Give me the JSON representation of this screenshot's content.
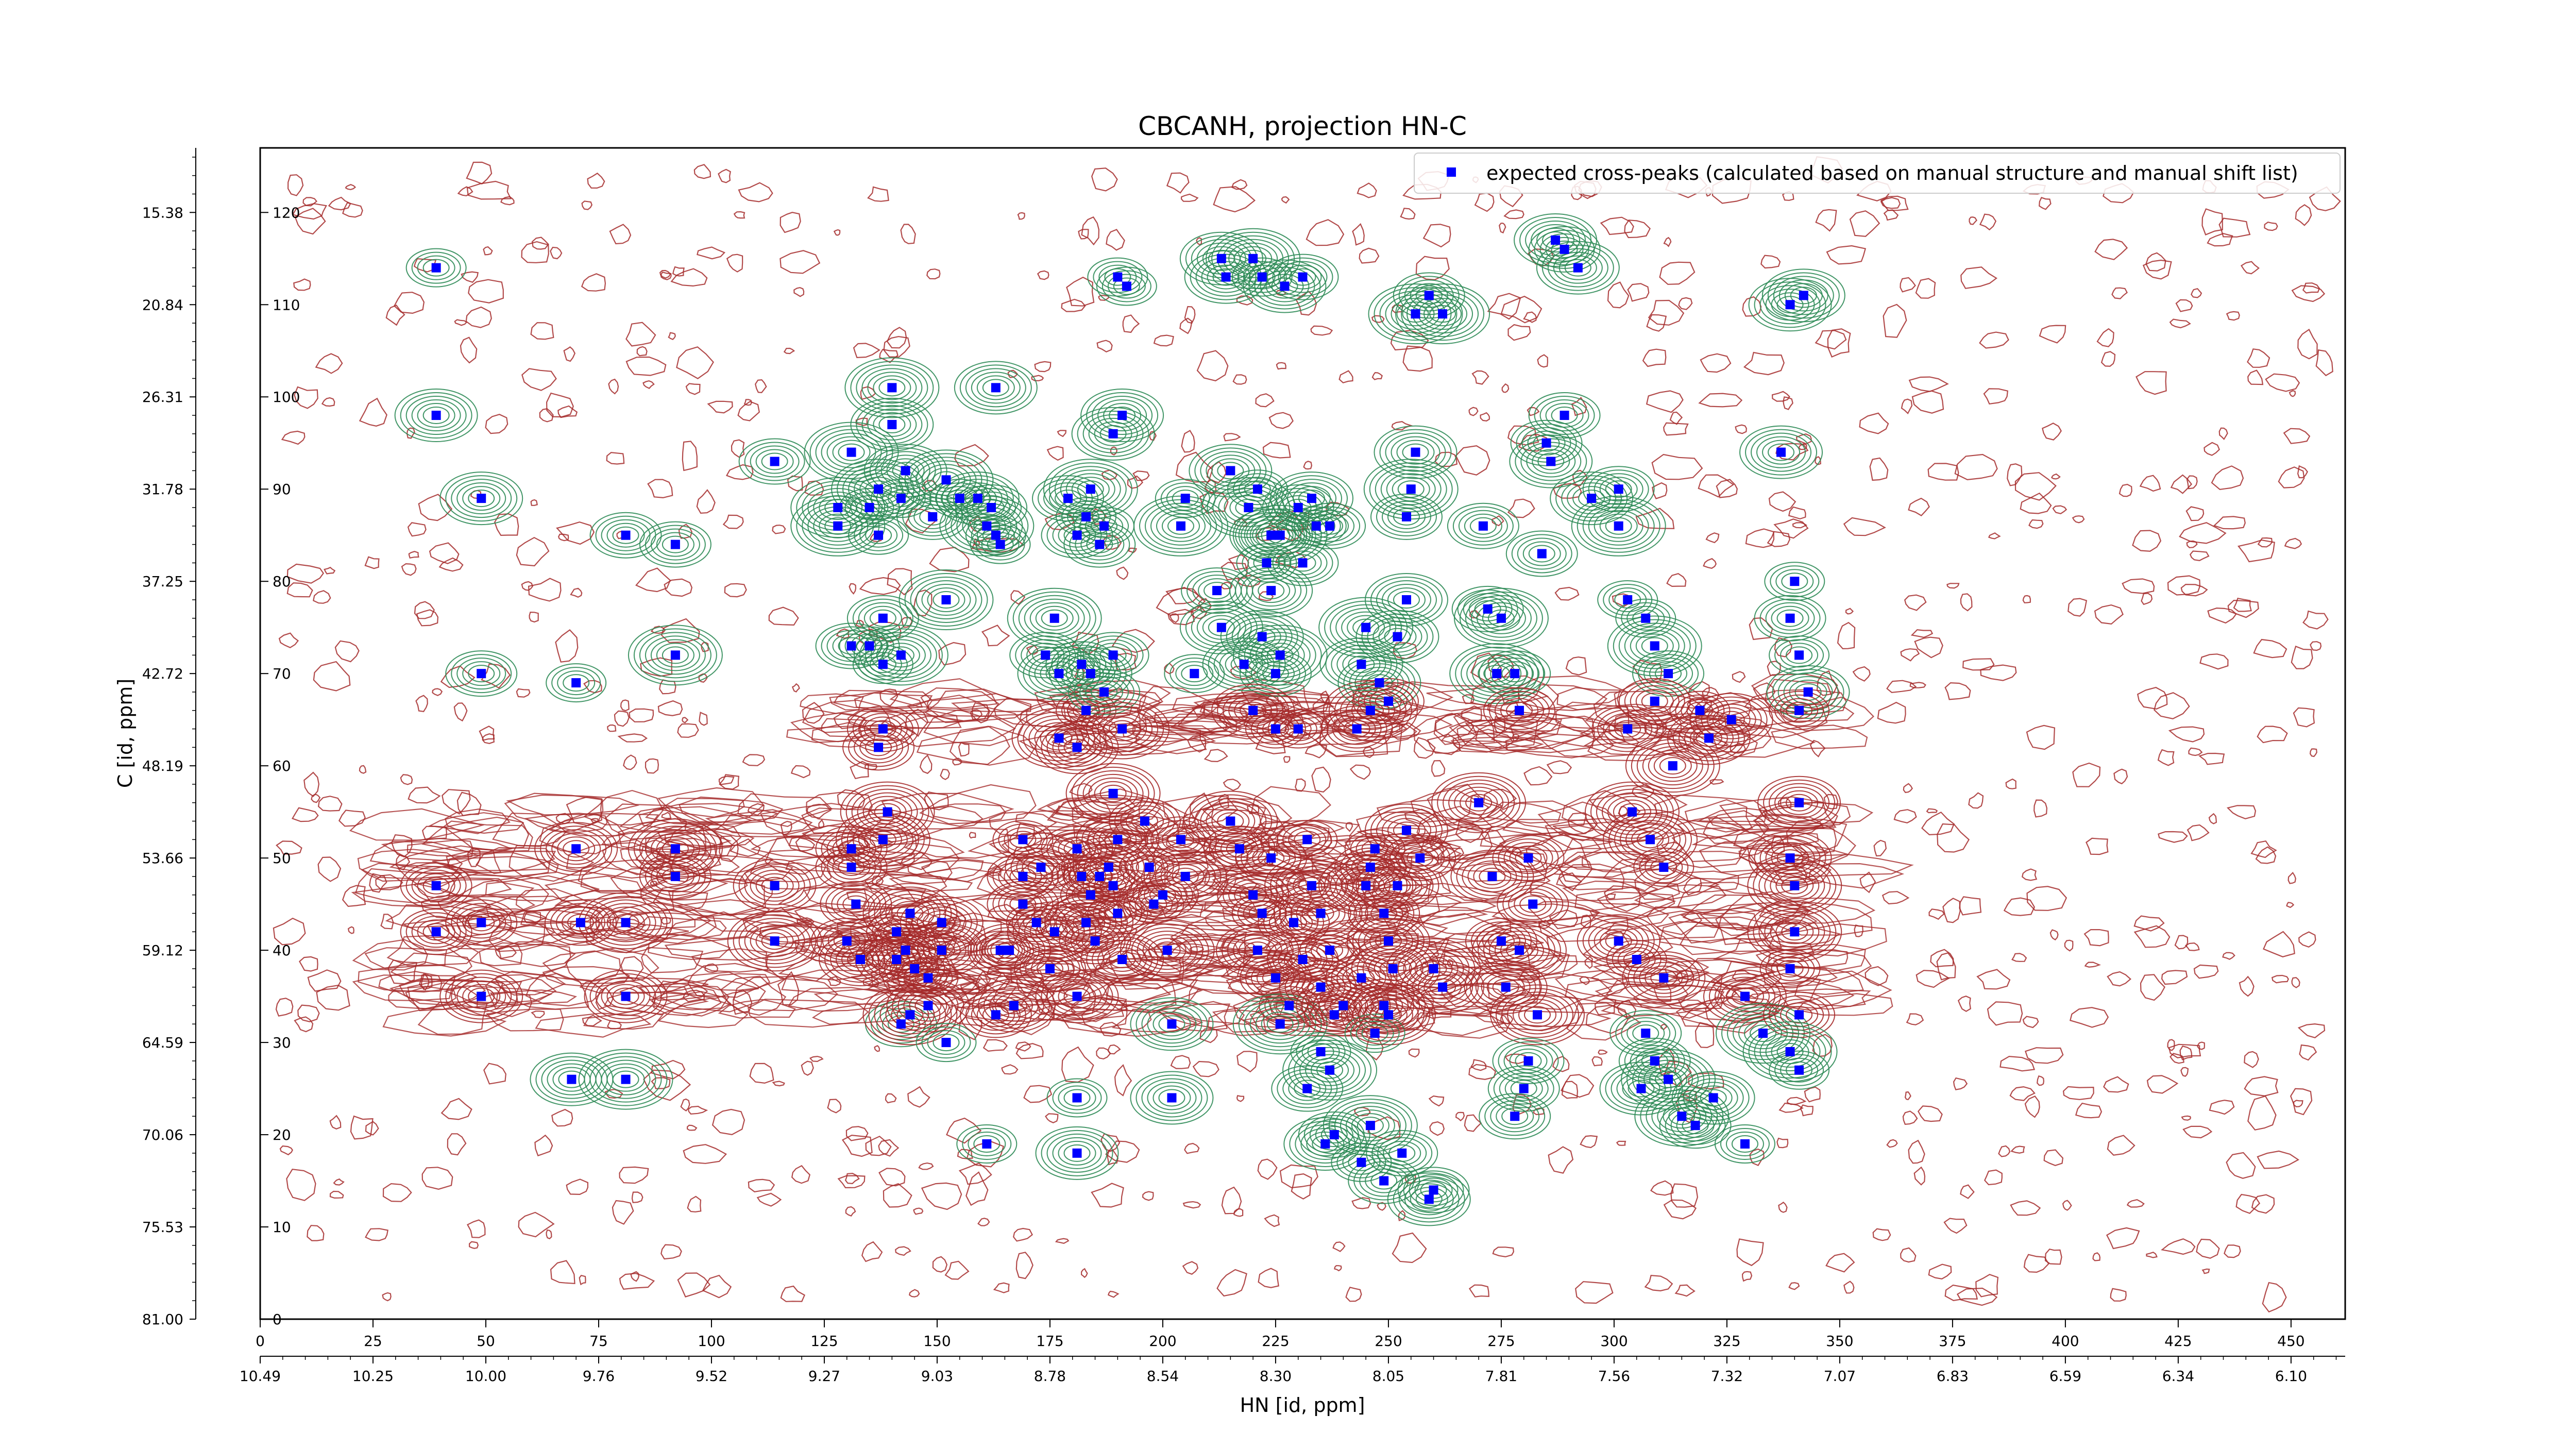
{
  "chart_data": {
    "type": "scatter",
    "title": "CBCANH, projection HN-C",
    "xlabel": "HN [id, ppm]",
    "ylabel": "C [id, ppm]",
    "x_index_range": [
      0,
      462
    ],
    "y_index_range": [
      0,
      127
    ],
    "x_index_ticks": [
      0,
      25,
      50,
      75,
      100,
      125,
      150,
      175,
      200,
      225,
      250,
      275,
      300,
      325,
      350,
      375,
      400,
      425,
      450
    ],
    "x_ppm_tick_labels": [
      "10.49",
      "10.25",
      "10.00",
      "9.76",
      "9.52",
      "9.27",
      "9.03",
      "8.78",
      "8.54",
      "8.30",
      "8.05",
      "7.81",
      "7.56",
      "7.32",
      "7.07",
      "6.83",
      "6.59",
      "6.34",
      "6.10"
    ],
    "y_index_ticks": [
      0,
      10,
      20,
      30,
      40,
      50,
      60,
      70,
      80,
      90,
      100,
      110,
      120
    ],
    "y_ppm_tick_labels": [
      "81.00",
      "75.53",
      "70.06",
      "64.59",
      "59.12",
      "53.66",
      "48.19",
      "42.72",
      "37.25",
      "31.78",
      "26.31",
      "20.84",
      "15.38"
    ],
    "legend": {
      "position": "top-right",
      "label": "expected cross-peaks (calculated based on manual structure and manual shift list)"
    },
    "colors": {
      "expected_peaks": "#0000ff",
      "positive_contours": "#2e8b57",
      "negative_contours": "#a52a2a"
    },
    "series": [
      {
        "name": "expected cross-peaks (calculated based on manual structure and manual shift list)",
        "marker": "square",
        "points": [
          [
            39,
            114
          ],
          [
            39,
            98
          ],
          [
            49,
            89
          ],
          [
            49,
            70
          ],
          [
            39,
            47
          ],
          [
            39,
            42
          ],
          [
            49,
            43
          ],
          [
            49,
            35
          ],
          [
            70,
            69
          ],
          [
            70,
            51
          ],
          [
            71,
            43
          ],
          [
            81,
            35
          ],
          [
            81,
            26
          ],
          [
            81,
            43
          ],
          [
            92,
            48
          ],
          [
            92,
            51
          ],
          [
            92,
            72
          ],
          [
            92,
            84
          ],
          [
            81,
            85
          ],
          [
            69,
            26
          ],
          [
            114,
            47
          ],
          [
            114,
            41
          ],
          [
            114,
            93
          ],
          [
            128,
            88
          ],
          [
            128,
            86
          ],
          [
            131,
            94
          ],
          [
            131,
            73
          ],
          [
            131,
            51
          ],
          [
            131,
            49
          ],
          [
            132,
            45
          ],
          [
            130,
            41
          ],
          [
            133,
            39
          ],
          [
            140,
            101
          ],
          [
            140,
            97
          ],
          [
            137,
            90
          ],
          [
            143,
            92
          ],
          [
            142,
            89
          ],
          [
            137,
            85
          ],
          [
            135,
            88
          ],
          [
            138,
            76
          ],
          [
            135,
            73
          ],
          [
            138,
            71
          ],
          [
            142,
            72
          ],
          [
            138,
            64
          ],
          [
            137,
            62
          ],
          [
            142,
            32
          ],
          [
            144,
            33
          ],
          [
            139,
            55
          ],
          [
            138,
            52
          ],
          [
            144,
            44
          ],
          [
            141,
            42
          ],
          [
            143,
            40
          ],
          [
            141,
            39
          ],
          [
            145,
            38
          ],
          [
            151,
            43
          ],
          [
            151,
            40
          ],
          [
            152,
            91
          ],
          [
            149,
            87
          ],
          [
            155,
            89
          ],
          [
            152,
            78
          ],
          [
            148,
            37
          ],
          [
            148,
            34
          ],
          [
            152,
            30
          ],
          [
            159,
            89
          ],
          [
            161,
            86
          ],
          [
            163,
            85
          ],
          [
            163,
            101
          ],
          [
            162,
            88
          ],
          [
            164,
            84
          ],
          [
            164,
            40
          ],
          [
            166,
            40
          ],
          [
            167,
            34
          ],
          [
            163,
            33
          ],
          [
            169,
            45
          ],
          [
            169,
            52
          ],
          [
            169,
            48
          ],
          [
            173,
            49
          ],
          [
            172,
            43
          ],
          [
            176,
            42
          ],
          [
            175,
            38
          ],
          [
            161,
            19
          ],
          [
            176,
            76
          ],
          [
            174,
            72
          ],
          [
            177,
            70
          ],
          [
            177,
            63
          ],
          [
            179,
            89
          ],
          [
            181,
            85
          ],
          [
            183,
            87
          ],
          [
            184,
            90
          ],
          [
            186,
            84
          ],
          [
            187,
            86
          ],
          [
            181,
            62
          ],
          [
            183,
            66
          ],
          [
            184,
            70
          ],
          [
            182,
            71
          ],
          [
            187,
            68
          ],
          [
            189,
            72
          ],
          [
            181,
            51
          ],
          [
            182,
            48
          ],
          [
            184,
            46
          ],
          [
            183,
            43
          ],
          [
            185,
            41
          ],
          [
            186,
            48
          ],
          [
            188,
            49
          ],
          [
            189,
            47
          ],
          [
            190,
            44
          ],
          [
            190,
            52
          ],
          [
            189,
            57
          ],
          [
            191,
            39
          ],
          [
            181,
            35
          ],
          [
            181,
            24
          ],
          [
            181,
            18
          ],
          [
            191,
            98
          ],
          [
            189,
            96
          ],
          [
            191,
            64
          ],
          [
            190,
            113
          ],
          [
            192,
            112
          ],
          [
            196,
            54
          ],
          [
            197,
            49
          ],
          [
            198,
            45
          ],
          [
            200,
            46
          ],
          [
            201,
            40
          ],
          [
            204,
            52
          ],
          [
            205,
            48
          ],
          [
            202,
            32
          ],
          [
            202,
            24
          ],
          [
            204,
            86
          ],
          [
            205,
            89
          ],
          [
            207,
            70
          ],
          [
            213,
            115
          ],
          [
            214,
            113
          ],
          [
            220,
            115
          ],
          [
            222,
            113
          ],
          [
            231,
            113
          ],
          [
            227,
            112
          ],
          [
            215,
            92
          ],
          [
            219,
            88
          ],
          [
            221,
            90
          ],
          [
            224,
            85
          ],
          [
            223,
            82
          ],
          [
            224,
            79
          ],
          [
            226,
            85
          ],
          [
            230,
            88
          ],
          [
            233,
            89
          ],
          [
            234,
            86
          ],
          [
            237,
            86
          ],
          [
            231,
            82
          ],
          [
            226,
            72
          ],
          [
            225,
            70
          ],
          [
            222,
            74
          ],
          [
            218,
            71
          ],
          [
            213,
            75
          ],
          [
            212,
            79
          ],
          [
            220,
            66
          ],
          [
            225,
            64
          ],
          [
            230,
            64
          ],
          [
            215,
            54
          ],
          [
            217,
            51
          ],
          [
            220,
            46
          ],
          [
            222,
            44
          ],
          [
            224,
            50
          ],
          [
            221,
            40
          ],
          [
            225,
            37
          ],
          [
            228,
            34
          ],
          [
            226,
            32
          ],
          [
            229,
            43
          ],
          [
            231,
            39
          ],
          [
            233,
            47
          ],
          [
            232,
            52
          ],
          [
            235,
            44
          ],
          [
            237,
            40
          ],
          [
            235,
            36
          ],
          [
            238,
            33
          ],
          [
            240,
            34
          ],
          [
            244,
            37
          ],
          [
            245,
            47
          ],
          [
            246,
            49
          ],
          [
            247,
            51
          ],
          [
            249,
            44
          ],
          [
            250,
            41
          ],
          [
            250,
            33
          ],
          [
            247,
            31
          ],
          [
            249,
            34
          ],
          [
            251,
            38
          ],
          [
            252,
            47
          ],
          [
            254,
            53
          ],
          [
            257,
            50
          ],
          [
            260,
            38
          ],
          [
            262,
            36
          ],
          [
            236,
            19
          ],
          [
            244,
            17
          ],
          [
            249,
            15
          ],
          [
            253,
            18
          ],
          [
            260,
            14
          ],
          [
            259,
            13
          ],
          [
            235,
            29
          ],
          [
            237,
            27
          ],
          [
            232,
            25
          ],
          [
            238,
            20
          ],
          [
            246,
            21
          ],
          [
            254,
            78
          ],
          [
            252,
            74
          ],
          [
            248,
            69
          ],
          [
            250,
            67
          ],
          [
            246,
            66
          ],
          [
            243,
            64
          ],
          [
            244,
            71
          ],
          [
            245,
            75
          ],
          [
            255,
            90
          ],
          [
            254,
            87
          ],
          [
            256,
            94
          ],
          [
            256,
            109
          ],
          [
            262,
            109
          ],
          [
            259,
            111
          ],
          [
            271,
            86
          ],
          [
            272,
            77
          ],
          [
            274,
            70
          ],
          [
            275,
            76
          ],
          [
            278,
            70
          ],
          [
            279,
            66
          ],
          [
            270,
            56
          ],
          [
            273,
            48
          ],
          [
            275,
            41
          ],
          [
            279,
            40
          ],
          [
            282,
            45
          ],
          [
            281,
            50
          ],
          [
            276,
            36
          ],
          [
            283,
            33
          ],
          [
            281,
            28
          ],
          [
            280,
            25
          ],
          [
            278,
            22
          ],
          [
            285,
            95
          ],
          [
            289,
            98
          ],
          [
            286,
            93
          ],
          [
            284,
            83
          ],
          [
            287,
            117
          ],
          [
            289,
            116
          ],
          [
            292,
            114
          ],
          [
            295,
            89
          ],
          [
            301,
            90
          ],
          [
            301,
            86
          ],
          [
            303,
            78
          ],
          [
            307,
            76
          ],
          [
            309,
            73
          ],
          [
            312,
            70
          ],
          [
            309,
            67
          ],
          [
            303,
            64
          ],
          [
            313,
            60
          ],
          [
            319,
            66
          ],
          [
            321,
            63
          ],
          [
            326,
            65
          ],
          [
            304,
            55
          ],
          [
            308,
            52
          ],
          [
            311,
            49
          ],
          [
            301,
            41
          ],
          [
            305,
            39
          ],
          [
            311,
            37
          ],
          [
            307,
            31
          ],
          [
            309,
            28
          ],
          [
            306,
            25
          ],
          [
            312,
            26
          ],
          [
            315,
            22
          ],
          [
            318,
            21
          ],
          [
            322,
            24
          ],
          [
            329,
            35
          ],
          [
            333,
            31
          ],
          [
            329,
            19
          ],
          [
            339,
            110
          ],
          [
            342,
            111
          ],
          [
            337,
            94
          ],
          [
            340,
            80
          ],
          [
            339,
            76
          ],
          [
            341,
            72
          ],
          [
            343,
            68
          ],
          [
            341,
            66
          ],
          [
            341,
            56
          ],
          [
            339,
            50
          ],
          [
            340,
            47
          ],
          [
            340,
            42
          ],
          [
            339,
            38
          ],
          [
            341,
            33
          ],
          [
            339,
            29
          ],
          [
            341,
            27
          ]
        ]
      }
    ]
  }
}
